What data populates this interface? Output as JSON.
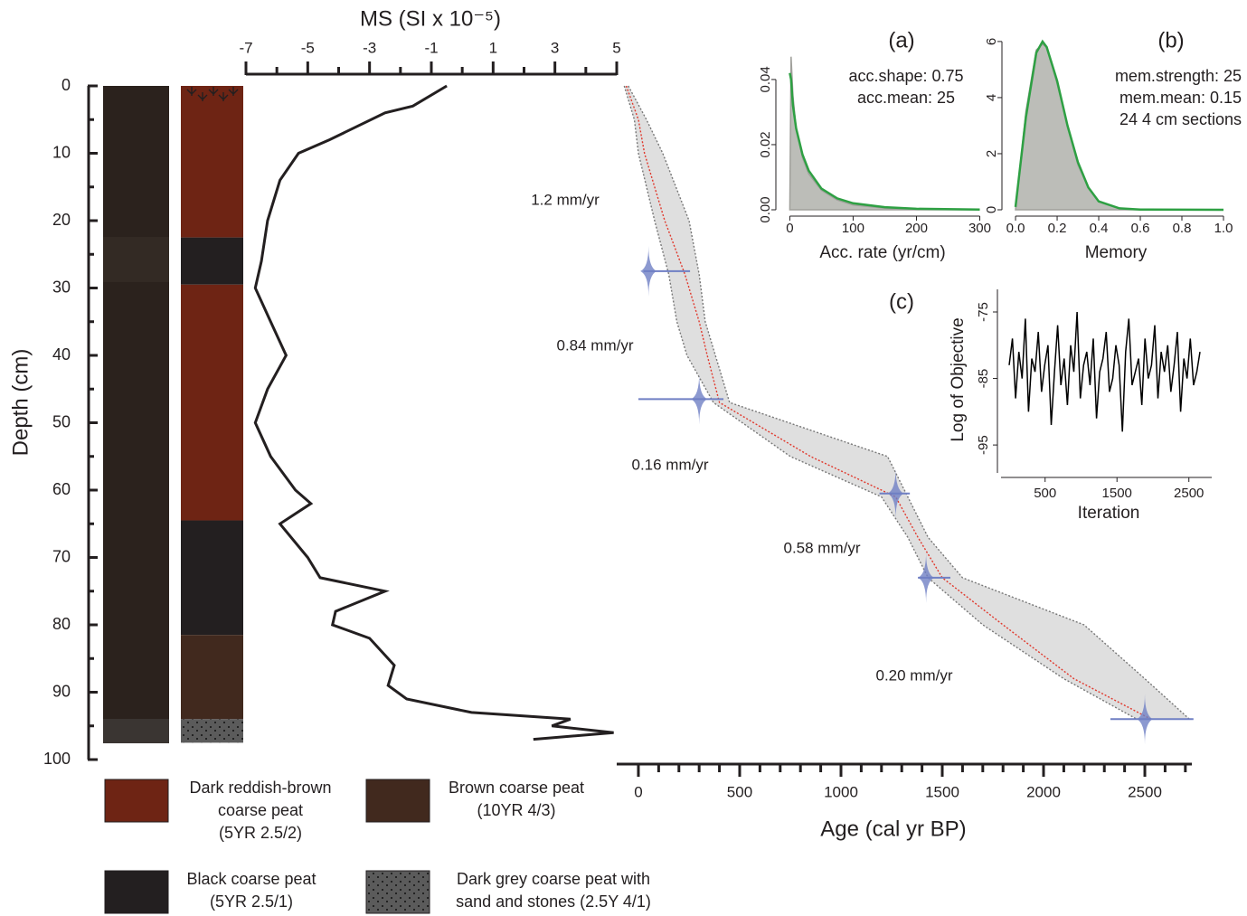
{
  "chart_data": [
    {
      "type": "column",
      "ylabel": "Depth (cm)",
      "ylim": [
        0,
        100
      ],
      "yticks": [
        0,
        10,
        20,
        30,
        40,
        50,
        60,
        70,
        80,
        90,
        100
      ],
      "yminorticks": [
        5,
        15,
        25,
        35,
        45,
        55,
        65,
        75,
        85,
        95
      ],
      "units": [
        {
          "top": 0,
          "bottom": 22.5,
          "color": "#6e2414"
        },
        {
          "top": 22.5,
          "bottom": 29.5,
          "color": "#231f20"
        },
        {
          "top": 29.5,
          "bottom": 64.5,
          "color": "#6e2414"
        },
        {
          "top": 64.5,
          "bottom": 81.5,
          "color": "#231f20"
        },
        {
          "top": 81.5,
          "bottom": 94,
          "color": "#41291e"
        },
        {
          "top": 94,
          "bottom": 97.5,
          "color": "#5b5b5b",
          "pattern": "dots"
        }
      ],
      "legend": [
        {
          "lines": [
            "Dark reddish-brown",
            "coarse peat",
            "(5YR 2.5/2)"
          ],
          "color": "#6e2414"
        },
        {
          "lines": [
            "Brown coarse peat",
            "(10YR 4/3)"
          ],
          "color": "#41291e"
        },
        {
          "lines": [
            "Black coarse peat",
            "(5YR 2.5/1)"
          ],
          "color": "#231f20"
        },
        {
          "lines": [
            "Dark grey coarse peat with",
            "sand and stones (2.5Y 4/1)"
          ],
          "color": "#5b5b5b",
          "pattern": "dots"
        }
      ]
    },
    {
      "type": "depthline",
      "title": "MS (SI x 10⁻⁵)",
      "xlim": [
        -7,
        5
      ],
      "xticks": [
        -7,
        -5,
        -3,
        -1,
        1,
        3,
        5
      ],
      "xminorticks": [
        -6,
        -4,
        -2,
        0,
        2,
        4
      ],
      "color": "#231f20",
      "depth": [
        0,
        3,
        4,
        8,
        10,
        14,
        20,
        26,
        30,
        35,
        40,
        45,
        50,
        55,
        60,
        62,
        65,
        70,
        73,
        75,
        78,
        80,
        82,
        86,
        89,
        91,
        93,
        94,
        95,
        96,
        97
      ],
      "values": [
        -0.5,
        -1.6,
        -2.5,
        -4.3,
        -5.3,
        -5.9,
        -6.3,
        -6.5,
        -6.7,
        -6.2,
        -5.7,
        -6.3,
        -6.7,
        -6.2,
        -5.4,
        -4.9,
        -5.9,
        -5.0,
        -4.6,
        -2.5,
        -4.1,
        -4.2,
        -3.0,
        -2.2,
        -2.4,
        -1.8,
        0.3,
        3.5,
        2.9,
        4.9,
        2.3
      ]
    },
    {
      "type": "agedepth",
      "xlabel": "Age (cal yr BP)",
      "xlim": [
        -107,
        2732
      ],
      "xticks": [
        0,
        500,
        1000,
        1500,
        2000,
        2500
      ],
      "xminorticks": [
        100,
        200,
        300,
        400,
        600,
        700,
        800,
        900,
        1100,
        1200,
        1300,
        1400,
        1600,
        1700,
        1800,
        1900,
        2100,
        2200,
        2300,
        2400,
        2600,
        2700
      ],
      "depth": [
        0,
        5,
        10,
        20,
        28,
        35,
        40,
        47,
        55,
        61,
        67,
        73,
        80,
        88,
        94
      ],
      "mean": [
        -60,
        0,
        30,
        130,
        230,
        300,
        340,
        400,
        850,
        1270,
        1380,
        1500,
        1800,
        2150,
        2530
      ],
      "min": [
        -70,
        -20,
        0,
        80,
        150,
        190,
        240,
        370,
        750,
        1200,
        1330,
        1430,
        1700,
        2100,
        2460
      ],
      "max": [
        -50,
        40,
        120,
        250,
        300,
        330,
        380,
        450,
        1230,
        1330,
        1430,
        1600,
        2200,
        2500,
        2720
      ],
      "mean_color": "#e0382c",
      "date_color": "#6f7fc4",
      "dates": {
        "depth": [
          27.5,
          46.5,
          60.5,
          73,
          94
        ],
        "age": [
          50,
          300,
          1270,
          1420,
          2500
        ],
        "lo": [
          25,
          0,
          1190,
          1380,
          2330
        ],
        "hi": [
          255,
          420,
          1340,
          1540,
          2740
        ]
      },
      "rates": [
        "1.2 mm/yr",
        "0.84 mm/yr",
        "0.16 mm/yr",
        "0.58 mm/yr",
        "0.20 mm/yr"
      ]
    },
    {
      "type": "density",
      "title": "(a)",
      "notes": [
        "acc.shape: 0.75",
        "acc.mean: 25"
      ],
      "xlabel": "Acc. rate (yr/cm)",
      "xlim": [
        -12,
        305
      ],
      "ylim": [
        0,
        0.0533
      ],
      "xticks": [
        0,
        100,
        200,
        300
      ],
      "yticks": [
        {
          "value": 0,
          "label": "0.00"
        },
        {
          "value": 0.02,
          "label": "0.02"
        },
        0.04
      ],
      "x": [
        0,
        2,
        5,
        10,
        20,
        30,
        50,
        75,
        100,
        150,
        200,
        300
      ],
      "series": [
        {
          "color": "#a0a09b",
          "fill": "#bcbdb8",
          "values": [
            0,
            0.047,
            0.035,
            0.025,
            0.016,
            0.011,
            0.006,
            0.003,
            0.0015,
            0.0005,
            0.0002,
            0
          ]
        },
        {
          "color": "#2ea043",
          "values": [
            0.042,
            0.04,
            0.032,
            0.025,
            0.017,
            0.012,
            0.0065,
            0.0035,
            0.002,
            0.0008,
            0.0003,
            5e-05
          ]
        }
      ]
    },
    {
      "type": "density",
      "title": "(b)",
      "notes": [
        "mem.strength: 25",
        "mem.mean: 0.15",
        "24 4 cm sections"
      ],
      "xlabel": "Memory",
      "xlim": [
        -0.035,
        1.0
      ],
      "ylim": [
        0,
        6.19
      ],
      "xticks": [
        {
          "value": 0,
          "label": "0.0"
        },
        0.2,
        0.4,
        0.6,
        0.8,
        {
          "value": 1,
          "label": "1.0"
        }
      ],
      "yticks": [
        0,
        2,
        4,
        6
      ],
      "x": [
        0,
        0.05,
        0.1,
        0.13,
        0.15,
        0.2,
        0.25,
        0.3,
        0.35,
        0.4,
        0.5,
        0.6,
        1.0
      ],
      "series": [
        {
          "color": "#a0a09b",
          "fill": "#bcbdb8",
          "values": [
            0,
            3.5,
            5.7,
            5.9,
            5.8,
            4.5,
            3.0,
            1.6,
            0.8,
            0.3,
            0.05,
            0,
            0
          ]
        },
        {
          "color": "#2ea043",
          "values": [
            0.1,
            3.3,
            5.6,
            6.0,
            5.8,
            4.6,
            3.0,
            1.7,
            0.8,
            0.3,
            0.05,
            0.01,
            0
          ]
        }
      ]
    },
    {
      "type": "trace",
      "title": "(c)",
      "xlabel": "Iteration",
      "ylabel": "Log  of Objective",
      "xlim": [
        -113,
        2818
      ],
      "ylim": [
        -99.2,
        -71.6
      ],
      "xticks": [
        500,
        1500,
        2500
      ],
      "yticks": [
        -75,
        -85,
        -95
      ],
      "color": "#000000",
      "x": [
        0,
        45,
        90,
        135,
        180,
        225,
        270,
        315,
        360,
        405,
        450,
        495,
        540,
        585,
        630,
        675,
        720,
        765,
        810,
        855,
        900,
        945,
        990,
        1035,
        1080,
        1125,
        1170,
        1215,
        1260,
        1305,
        1350,
        1395,
        1440,
        1485,
        1530,
        1575,
        1620,
        1665,
        1710,
        1755,
        1800,
        1845,
        1890,
        1935,
        1980,
        2025,
        2070,
        2115,
        2160,
        2205,
        2250,
        2295,
        2340,
        2385,
        2430,
        2475,
        2520,
        2565,
        2610,
        2655
      ],
      "values": [
        -83,
        -79,
        -88,
        -81,
        -85,
        -76,
        -90,
        -82,
        -84,
        -78,
        -87,
        -83,
        -80,
        -92,
        -84,
        -77,
        -86,
        -82,
        -89,
        -80,
        -84,
        -75,
        -88,
        -83,
        -81,
        -86,
        -79,
        -91,
        -84,
        -82,
        -78,
        -87,
        -85,
        -80,
        -83,
        -93,
        -81,
        -76,
        -86,
        -84,
        -82,
        -89,
        -79,
        -85,
        -83,
        -77,
        -88,
        -81,
        -84,
        -80,
        -87,
        -83,
        -78,
        -90,
        -82,
        -85,
        -79,
        -86,
        -84,
        -81
      ]
    }
  ]
}
